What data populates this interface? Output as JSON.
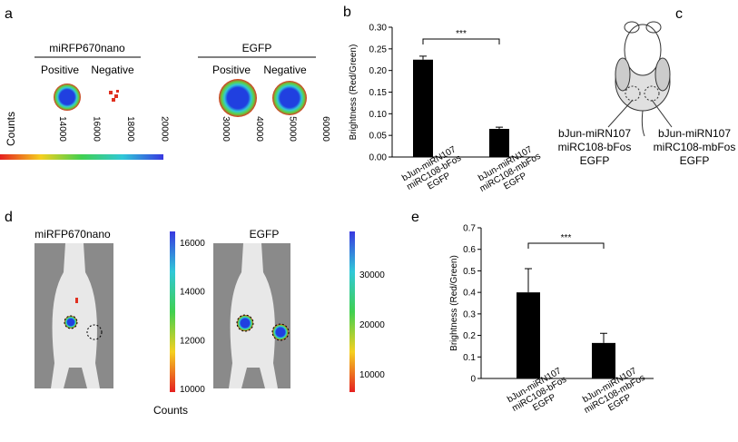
{
  "panel_labels": [
    "a",
    "b",
    "c",
    "d",
    "e"
  ],
  "panel_a": {
    "groups": [
      {
        "title": "miRFP670nano",
        "columns": [
          "Positive",
          "Negative"
        ]
      },
      {
        "title": "EGFP",
        "columns": [
          "Positive",
          "Negative"
        ]
      }
    ],
    "colorbar_label": "Counts"
  },
  "panel_c": {
    "labels": [
      [
        "bJun-miRN107",
        "miRC108-bFos",
        "EGFP"
      ],
      [
        "bJun-miRN107",
        "miRC108-mbFos",
        "EGFP"
      ]
    ]
  },
  "panel_d": {
    "titles": [
      "miRFP670nano",
      "EGFP"
    ],
    "colorbar_label": "Counts"
  },
  "colorbars": [
    {
      "orientation": "horizontal",
      "lim": [
        10650,
        20230
      ],
      "ticks": [
        14000,
        16000,
        18000,
        20000
      ]
    },
    {
      "orientation": "horizontal",
      "lim": [
        23700,
        60750
      ],
      "ticks": [
        30000,
        40000,
        50000,
        60000
      ]
    },
    {
      "orientation": "vertical",
      "lim": [
        9850,
        16450
      ],
      "ticks": [
        10000,
        12000,
        14000,
        16000
      ]
    },
    {
      "orientation": "vertical",
      "lim": [
        6360,
        38550
      ],
      "ticks": [
        10000,
        20000,
        30000
      ]
    }
  ],
  "chart_data": [
    {
      "type": "bar",
      "y_label": "Brightness (Red/Green)",
      "categories": [
        "bJun-miRN107\nmiRC108-bFos\nEGFP",
        "bJun-miRN107\nmiRC108-mbFos\nEGFP"
      ],
      "values": [
        0.225,
        0.065
      ],
      "errors": [
        0.008,
        0.004
      ],
      "color": "#000000",
      "ylim": [
        0,
        0.3
      ],
      "yticks": [
        {
          "value": 0,
          "label": "0.00"
        },
        {
          "value": 0.05,
          "label": "0.05"
        },
        {
          "value": 0.1,
          "label": "0.10"
        },
        {
          "value": 0.15,
          "label": "0.15"
        },
        {
          "value": 0.2,
          "label": "0.20"
        },
        {
          "value": 0.25,
          "label": "0.25"
        },
        {
          "value": 0.3,
          "label": "0.30"
        }
      ],
      "annotation": "***"
    },
    {
      "type": "bar",
      "y_label": "Brightness (Red/Green)",
      "categories": [
        "bJun-miRN107\nmiRC108-bFos\nEGFP",
        "bJun-miRN107\nmiRC108-mbFos\nEGFP"
      ],
      "values": [
        0.4,
        0.165
      ],
      "errors": [
        0.11,
        0.045
      ],
      "color": "#000000",
      "ylim": [
        0,
        0.7
      ],
      "yticks": [
        0,
        0.1,
        0.2,
        0.3,
        0.4,
        0.5,
        0.6,
        0.7
      ],
      "annotation": "***"
    }
  ]
}
